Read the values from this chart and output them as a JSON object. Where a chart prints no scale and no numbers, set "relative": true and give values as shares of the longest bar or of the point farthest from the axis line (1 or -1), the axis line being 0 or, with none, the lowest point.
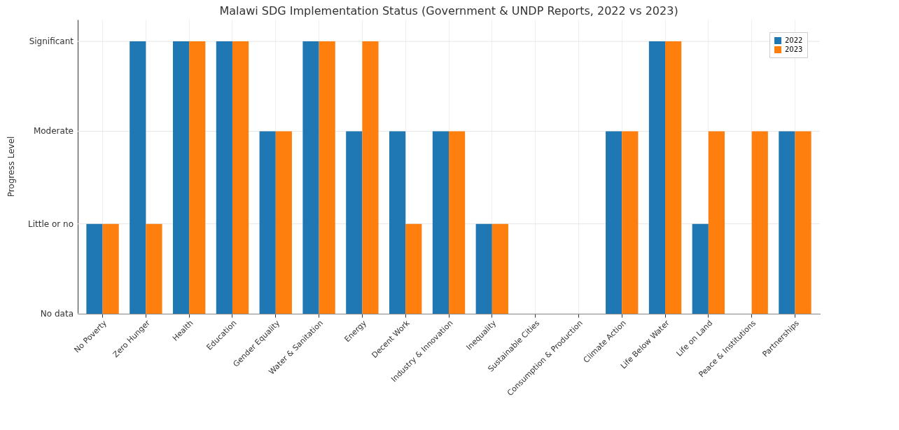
{
  "chart_data": {
    "type": "bar",
    "title": "Malawi SDG Implementation Status (Government & UNDP Reports, 2022 vs 2023)",
    "annotations": [
      "Progress Level"
    ],
    "relative": true,
    "categories": [
      "No Poverty",
      "Zero Hunger",
      "Health",
      "Education",
      "Gender Equality",
      "Water & Sanitation",
      "Energy",
      "Decent Work",
      "Industry & Innovation",
      "Inequality",
      "Sustainable Cities",
      "Consumption & Production",
      "Climate Action",
      "Life Below Water",
      "Life on Land",
      "Peace & Institutions",
      "Partnerships"
    ],
    "series": [
      {
        "name": "2022",
        "color": "#1f77b4",
        "values": [
          0.33,
          1,
          1,
          1,
          0.67,
          1,
          0.67,
          0.67,
          0.67,
          0.33,
          0,
          0,
          0.67,
          1,
          0.33,
          0,
          0.67
        ]
      },
      {
        "name": "2023",
        "color": "#ff7f0e",
        "values": [
          0.33,
          0.33,
          1,
          1,
          0.67,
          1,
          1,
          0.33,
          0.67,
          0.33,
          0,
          0,
          0.67,
          1,
          0.67,
          0.67,
          0.67
        ]
      }
    ],
    "ref_lines": [
      {
        "axis": "y",
        "value": 0,
        "label": "No data"
      },
      {
        "axis": "y",
        "value": 0.33,
        "label": "Little or no"
      },
      {
        "axis": "y",
        "value": 0.67,
        "label": "Moderate"
      },
      {
        "axis": "y",
        "value": 1,
        "label": "Significant"
      }
    ],
    "grid": "x",
    "legend": "top right"
  }
}
